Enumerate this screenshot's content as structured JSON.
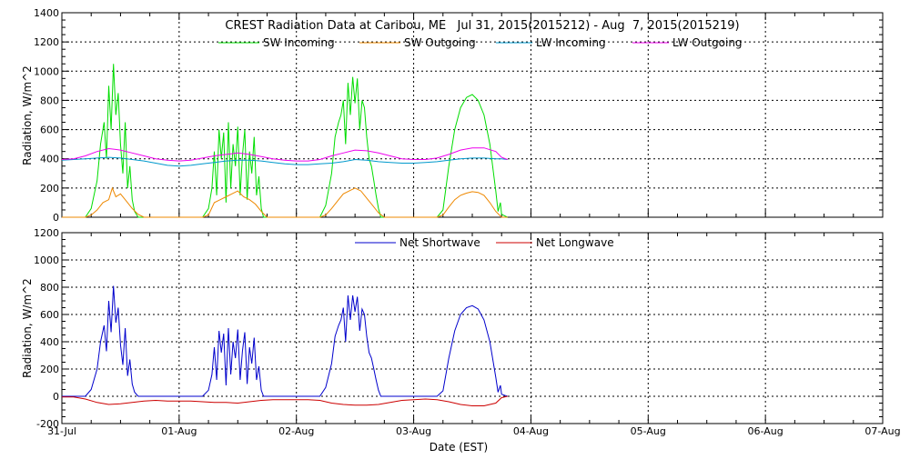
{
  "chart_data": [
    {
      "type": "line",
      "title": "CREST Radiation Data at Caribou, ME   Jul 31, 2015(2015212) - Aug  7, 2015(2015219)",
      "ylabel": "Radiation, W/m^2",
      "xlabel": "",
      "x_unit": "days since 31-Jul 00:00 EST",
      "xlim": [
        0,
        7
      ],
      "ylim": [
        0,
        1400
      ],
      "yticks": [
        0,
        200,
        400,
        600,
        800,
        1000,
        1200,
        1400
      ],
      "x_tick_labels": [
        "31-Jul",
        "01-Aug",
        "02-Aug",
        "03-Aug",
        "04-Aug",
        "05-Aug",
        "06-Aug",
        "07-Aug"
      ],
      "grid": true,
      "legend": "top",
      "colors": {
        "sw_in": "#00dd00",
        "sw_out": "#ee8800",
        "lw_in": "#0099cc",
        "lw_out": "#ee00ee"
      },
      "series": [
        {
          "name": "SW Incoming",
          "key": "sw_in",
          "x": [
            0.0,
            0.2,
            0.25,
            0.3,
            0.33,
            0.36,
            0.38,
            0.4,
            0.42,
            0.44,
            0.46,
            0.48,
            0.5,
            0.52,
            0.54,
            0.56,
            0.58,
            0.6,
            0.62,
            0.65,
            0.7,
            0.75,
            0.8,
            1.0,
            1.2,
            1.25,
            1.28,
            1.3,
            1.32,
            1.34,
            1.36,
            1.38,
            1.4,
            1.42,
            1.44,
            1.46,
            1.48,
            1.5,
            1.52,
            1.54,
            1.56,
            1.58,
            1.6,
            1.62,
            1.64,
            1.66,
            1.68,
            1.7,
            1.72,
            1.75,
            1.8,
            2.0,
            2.2,
            2.25,
            2.3,
            2.33,
            2.36,
            2.38,
            2.4,
            2.42,
            2.44,
            2.46,
            2.48,
            2.5,
            2.52,
            2.54,
            2.56,
            2.58,
            2.6,
            2.62,
            2.64,
            2.66,
            2.68,
            2.7,
            2.72,
            2.75,
            2.8,
            3.0,
            3.2,
            3.25,
            3.3,
            3.35,
            3.4,
            3.45,
            3.5,
            3.55,
            3.6,
            3.65,
            3.7,
            3.72,
            3.74,
            3.75,
            3.8
          ],
          "y": [
            0,
            0,
            60,
            250,
            500,
            650,
            400,
            900,
            600,
            1050,
            700,
            850,
            500,
            300,
            650,
            200,
            350,
            120,
            40,
            0,
            0,
            0,
            0,
            0,
            0,
            60,
            200,
            450,
            150,
            600,
            400,
            580,
            100,
            650,
            200,
            500,
            350,
            620,
            150,
            420,
            600,
            120,
            450,
            300,
            550,
            150,
            280,
            60,
            0,
            0,
            0,
            0,
            0,
            80,
            300,
            550,
            650,
            700,
            800,
            500,
            920,
            700,
            960,
            780,
            950,
            600,
            800,
            750,
            550,
            400,
            350,
            250,
            150,
            60,
            0,
            0,
            0,
            0,
            0,
            50,
            350,
            600,
            750,
            820,
            840,
            800,
            700,
            500,
            180,
            40,
            100,
            20,
            0
          ]
        },
        {
          "name": "SW Outgoing",
          "key": "sw_out",
          "x": [
            0.0,
            0.2,
            0.25,
            0.3,
            0.35,
            0.4,
            0.43,
            0.46,
            0.5,
            0.55,
            0.6,
            0.65,
            0.7,
            1.2,
            1.25,
            1.3,
            1.35,
            1.4,
            1.45,
            1.5,
            1.55,
            1.6,
            1.65,
            1.7,
            1.75,
            2.2,
            2.25,
            2.3,
            2.35,
            2.4,
            2.45,
            2.5,
            2.55,
            2.6,
            2.65,
            2.7,
            2.75,
            3.2,
            3.25,
            3.3,
            3.35,
            3.4,
            3.45,
            3.5,
            3.55,
            3.6,
            3.65,
            3.7,
            3.75,
            3.8
          ],
          "y": [
            0,
            0,
            15,
            50,
            100,
            120,
            200,
            140,
            160,
            110,
            60,
            20,
            0,
            0,
            15,
            100,
            120,
            140,
            160,
            180,
            140,
            120,
            90,
            40,
            0,
            0,
            15,
            60,
            110,
            160,
            180,
            200,
            180,
            130,
            80,
            30,
            0,
            0,
            15,
            70,
            120,
            150,
            165,
            175,
            170,
            150,
            100,
            40,
            0,
            0
          ]
        },
        {
          "name": "LW Incoming",
          "key": "lw_in",
          "x": [
            0.0,
            0.1,
            0.2,
            0.3,
            0.4,
            0.5,
            0.6,
            0.7,
            0.8,
            0.9,
            1.0,
            1.1,
            1.2,
            1.3,
            1.4,
            1.5,
            1.6,
            1.7,
            1.8,
            1.9,
            2.0,
            2.1,
            2.2,
            2.3,
            2.4,
            2.5,
            2.6,
            2.7,
            2.8,
            2.9,
            3.0,
            3.1,
            3.2,
            3.3,
            3.4,
            3.5,
            3.6,
            3.7,
            3.75,
            3.8
          ],
          "y": [
            390,
            395,
            400,
            405,
            410,
            405,
            395,
            385,
            370,
            355,
            350,
            355,
            365,
            375,
            385,
            390,
            390,
            385,
            375,
            365,
            360,
            360,
            365,
            370,
            380,
            395,
            390,
            380,
            375,
            370,
            370,
            375,
            380,
            390,
            400,
            405,
            405,
            400,
            400,
            395
          ]
        },
        {
          "name": "LW Outgoing",
          "key": "lw_out",
          "x": [
            0.0,
            0.1,
            0.2,
            0.3,
            0.4,
            0.5,
            0.6,
            0.7,
            0.8,
            0.9,
            1.0,
            1.1,
            1.2,
            1.3,
            1.4,
            1.5,
            1.6,
            1.7,
            1.8,
            1.9,
            2.0,
            2.1,
            2.2,
            2.3,
            2.4,
            2.5,
            2.6,
            2.7,
            2.8,
            2.9,
            3.0,
            3.1,
            3.2,
            3.3,
            3.4,
            3.5,
            3.6,
            3.7,
            3.75,
            3.8
          ],
          "y": [
            395,
            400,
            420,
            450,
            470,
            460,
            440,
            420,
            400,
            390,
            385,
            390,
            405,
            420,
            430,
            440,
            430,
            415,
            400,
            390,
            385,
            385,
            395,
            420,
            440,
            460,
            455,
            440,
            420,
            400,
            395,
            395,
            405,
            430,
            460,
            475,
            475,
            450,
            410,
            395
          ]
        }
      ]
    },
    {
      "type": "line",
      "title": "",
      "ylabel": "Radiation, W/m^2",
      "xlabel": "Date (EST)",
      "x_unit": "days since 31-Jul 00:00 EST",
      "xlim": [
        0,
        7
      ],
      "ylim": [
        -200,
        1200
      ],
      "yticks": [
        -200,
        0,
        200,
        400,
        600,
        800,
        1000,
        1200
      ],
      "x_tick_labels": [
        "31-Jul",
        "01-Aug",
        "02-Aug",
        "03-Aug",
        "04-Aug",
        "05-Aug",
        "06-Aug",
        "07-Aug"
      ],
      "grid": true,
      "legend": "top",
      "colors": {
        "net_sw": "#0000cc",
        "net_lw": "#cc0000"
      },
      "series": [
        {
          "name": "Net Shortwave",
          "key": "net_sw",
          "x": [
            0.0,
            0.2,
            0.25,
            0.3,
            0.33,
            0.36,
            0.38,
            0.4,
            0.42,
            0.44,
            0.46,
            0.48,
            0.5,
            0.52,
            0.54,
            0.56,
            0.58,
            0.6,
            0.62,
            0.65,
            0.7,
            0.75,
            0.8,
            1.0,
            1.2,
            1.25,
            1.28,
            1.3,
            1.32,
            1.34,
            1.36,
            1.38,
            1.4,
            1.42,
            1.44,
            1.46,
            1.48,
            1.5,
            1.52,
            1.54,
            1.56,
            1.58,
            1.6,
            1.62,
            1.64,
            1.66,
            1.68,
            1.7,
            1.72,
            1.75,
            1.8,
            2.0,
            2.2,
            2.25,
            2.3,
            2.33,
            2.36,
            2.38,
            2.4,
            2.42,
            2.44,
            2.46,
            2.48,
            2.5,
            2.52,
            2.54,
            2.56,
            2.58,
            2.6,
            2.62,
            2.64,
            2.66,
            2.68,
            2.7,
            2.72,
            2.75,
            2.8,
            3.0,
            3.2,
            3.25,
            3.3,
            3.35,
            3.4,
            3.45,
            3.5,
            3.55,
            3.6,
            3.65,
            3.7,
            3.72,
            3.74,
            3.75,
            3.8
          ],
          "y": [
            0,
            0,
            50,
            200,
            400,
            520,
            330,
            700,
            470,
            810,
            540,
            650,
            380,
            230,
            500,
            150,
            270,
            90,
            30,
            0,
            0,
            0,
            0,
            0,
            0,
            45,
            160,
            360,
            120,
            480,
            320,
            460,
            80,
            500,
            160,
            400,
            280,
            490,
            120,
            330,
            470,
            90,
            360,
            240,
            430,
            120,
            220,
            45,
            0,
            0,
            0,
            0,
            0,
            65,
            240,
            440,
            520,
            560,
            650,
            400,
            740,
            560,
            740,
            620,
            730,
            480,
            640,
            600,
            440,
            320,
            280,
            200,
            120,
            45,
            0,
            0,
            0,
            0,
            0,
            40,
            280,
            480,
            600,
            650,
            665,
            640,
            560,
            400,
            140,
            30,
            80,
            15,
            0
          ]
        },
        {
          "name": "Net Longwave",
          "key": "net_lw",
          "x": [
            0.0,
            0.1,
            0.2,
            0.3,
            0.4,
            0.5,
            0.6,
            0.7,
            0.8,
            0.9,
            1.0,
            1.1,
            1.2,
            1.3,
            1.4,
            1.5,
            1.6,
            1.7,
            1.8,
            1.9,
            2.0,
            2.1,
            2.2,
            2.3,
            2.4,
            2.5,
            2.6,
            2.7,
            2.8,
            2.9,
            3.0,
            3.1,
            3.2,
            3.3,
            3.4,
            3.5,
            3.6,
            3.7,
            3.75,
            3.8
          ],
          "y": [
            -5,
            -5,
            -20,
            -45,
            -60,
            -55,
            -45,
            -35,
            -30,
            -35,
            -35,
            -35,
            -40,
            -45,
            -45,
            -50,
            -40,
            -30,
            -25,
            -25,
            -25,
            -25,
            -30,
            -50,
            -60,
            -65,
            -65,
            -60,
            -45,
            -30,
            -25,
            -20,
            -25,
            -40,
            -60,
            -70,
            -70,
            -50,
            -10,
            0
          ]
        }
      ]
    }
  ]
}
